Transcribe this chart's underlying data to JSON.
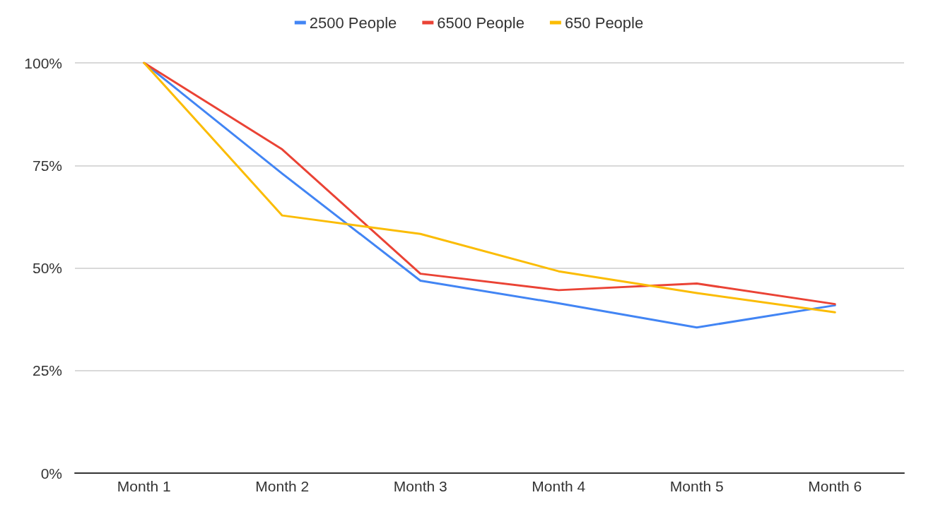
{
  "chart_data": {
    "type": "line",
    "categories": [
      "Month 1",
      "Month 2",
      "Month 3",
      "Month 4",
      "Month 5",
      "Month 6"
    ],
    "series": [
      {
        "name": "2500 People",
        "color": "#4285f4",
        "values": [
          100,
          73,
          46.9,
          41.4,
          35.5,
          40.9
        ]
      },
      {
        "name": "6500 People",
        "color": "#ea4335",
        "values": [
          100,
          78.9,
          48.6,
          44.6,
          46.2,
          41.2
        ]
      },
      {
        "name": "650 People",
        "color": "#fbbc04",
        "values": [
          100,
          62.8,
          58.3,
          49.2,
          43.9,
          39.2
        ]
      }
    ],
    "ylim": [
      0,
      100
    ],
    "yticks": [
      {
        "value": 0,
        "label": "0%"
      },
      {
        "value": 25,
        "label": "25%"
      },
      {
        "value": 50,
        "label": "50%"
      },
      {
        "value": 75,
        "label": "75%"
      },
      {
        "value": 100,
        "label": "100%"
      }
    ],
    "grid": "y",
    "legend": "top",
    "marker": "none",
    "line_style": "solid"
  }
}
